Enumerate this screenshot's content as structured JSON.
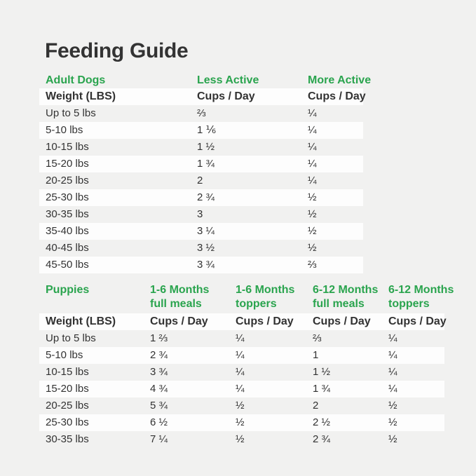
{
  "title": "Feeding Guide",
  "colors": {
    "background": "#f1f1f0",
    "row_highlight": "#fdfdfd",
    "accent_green": "#2aa44e",
    "text": "#323232"
  },
  "adult": {
    "section_label": "Adult Dogs",
    "col_headers": [
      "Less Active",
      "More Active"
    ],
    "weight_header": "Weight (LBS)",
    "cups_header": "Cups / Day",
    "rows": [
      {
        "weight": "Up to 5 lbs",
        "values": [
          "⅔",
          "¼"
        ]
      },
      {
        "weight": "5-10 lbs",
        "values": [
          "1 ⅙",
          "¼"
        ]
      },
      {
        "weight": "10-15 lbs",
        "values": [
          "1 ½",
          "¼"
        ]
      },
      {
        "weight": "15-20 lbs",
        "values": [
          "1 ¾",
          "¼"
        ]
      },
      {
        "weight": "20-25 lbs",
        "values": [
          "2",
          "¼"
        ]
      },
      {
        "weight": "25-30 lbs",
        "values": [
          "2 ¾",
          "½"
        ]
      },
      {
        "weight": "30-35 lbs",
        "values": [
          "3",
          "½"
        ]
      },
      {
        "weight": "35-40 lbs",
        "values": [
          "3 ¼",
          "½"
        ]
      },
      {
        "weight": "40-45 lbs",
        "values": [
          "3 ½",
          "½"
        ]
      },
      {
        "weight": "45-50 lbs",
        "values": [
          "3 ¾",
          "⅔"
        ]
      }
    ]
  },
  "puppies": {
    "section_label": "Puppies",
    "col_headers": [
      {
        "line1": "1-6 Months",
        "line2": "full meals"
      },
      {
        "line1": "1-6 Months",
        "line2": "toppers"
      },
      {
        "line1": "6-12 Months",
        "line2": "full meals"
      },
      {
        "line1": "6-12 Months",
        "line2": "toppers"
      }
    ],
    "weight_header": "Weight (LBS)",
    "cups_header": "Cups / Day",
    "rows": [
      {
        "weight": "Up to 5 lbs",
        "values": [
          "1 ⅔",
          "¼",
          "⅔",
          "¼"
        ]
      },
      {
        "weight": "5-10 lbs",
        "values": [
          "2 ¾",
          "¼",
          "1",
          "¼"
        ]
      },
      {
        "weight": "10-15 lbs",
        "values": [
          "3 ¾",
          "¼",
          "1 ½",
          "¼"
        ]
      },
      {
        "weight": "15-20 lbs",
        "values": [
          "4 ¾",
          "¼",
          "1 ¾",
          "¼"
        ]
      },
      {
        "weight": "20-25 lbs",
        "values": [
          "5 ¾",
          "½",
          "2",
          "½"
        ]
      },
      {
        "weight": "25-30 lbs",
        "values": [
          "6 ½",
          "½",
          "2 ½",
          "½"
        ]
      },
      {
        "weight": "30-35 lbs",
        "values": [
          "7 ¼",
          "½",
          "2 ¾",
          "½"
        ]
      }
    ]
  }
}
